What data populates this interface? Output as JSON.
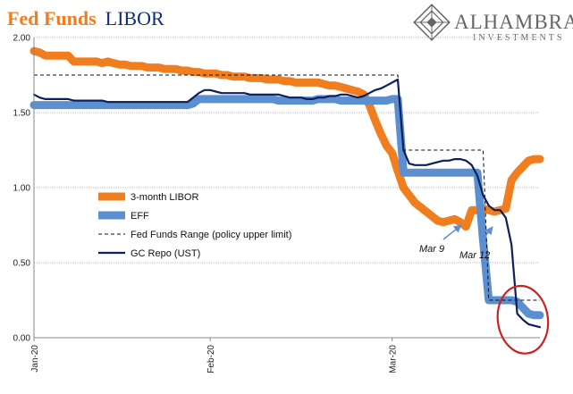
{
  "chart_data": {
    "type": "line",
    "title_part1": "Fed Funds",
    "title_part2": "LIBOR",
    "x": [
      0,
      1,
      2,
      3,
      4,
      5,
      6,
      7,
      8,
      9,
      10,
      11,
      12,
      13,
      14,
      15,
      16,
      17,
      18,
      19,
      20,
      21,
      22,
      23,
      24,
      25,
      26,
      27,
      28,
      29,
      30,
      31,
      32,
      33,
      34,
      35,
      36,
      37,
      38,
      39,
      40,
      41,
      42,
      43,
      44,
      45,
      46,
      47,
      48,
      49,
      50,
      51,
      52,
      53,
      54,
      55,
      56,
      57,
      58,
      59,
      60,
      61,
      62,
      63,
      64,
      65,
      66,
      67,
      68,
      69,
      70,
      71,
      72,
      73,
      74,
      75,
      76,
      77,
      78,
      79,
      80,
      81,
      82,
      83,
      84,
      85,
      86,
      87,
      88,
      89
    ],
    "series": [
      {
        "name": "3-month LIBOR",
        "color": "#f07d1e",
        "values": [
          1.91,
          1.9,
          1.88,
          1.88,
          1.88,
          1.88,
          1.88,
          1.84,
          1.84,
          1.84,
          1.84,
          1.84,
          1.83,
          1.84,
          1.83,
          1.82,
          1.82,
          1.81,
          1.81,
          1.81,
          1.8,
          1.8,
          1.8,
          1.79,
          1.79,
          1.79,
          1.78,
          1.78,
          1.77,
          1.77,
          1.76,
          1.76,
          1.76,
          1.75,
          1.75,
          1.74,
          1.74,
          1.74,
          1.73,
          1.73,
          1.73,
          1.72,
          1.72,
          1.72,
          1.71,
          1.71,
          1.7,
          1.7,
          1.7,
          1.7,
          1.7,
          1.69,
          1.68,
          1.68,
          1.67,
          1.66,
          1.65,
          1.64,
          1.62,
          1.55,
          1.45,
          1.36,
          1.28,
          1.23,
          1.11,
          1.0,
          0.95,
          0.9,
          0.87,
          0.84,
          0.81,
          0.78,
          0.77,
          0.78,
          0.79,
          0.77,
          0.74,
          0.85,
          0.85,
          0.86,
          0.85,
          0.84,
          0.85,
          0.86,
          1.05,
          1.1,
          1.14,
          1.18,
          1.19,
          1.19
        ]
      },
      {
        "name": "EFF",
        "color": "#5b8fd0",
        "values": [
          1.55,
          1.55,
          1.55,
          1.55,
          1.55,
          1.55,
          1.55,
          1.55,
          1.55,
          1.55,
          1.55,
          1.55,
          1.55,
          1.55,
          1.55,
          1.55,
          1.55,
          1.55,
          1.55,
          1.55,
          1.55,
          1.55,
          1.55,
          1.55,
          1.55,
          1.55,
          1.55,
          1.55,
          1.56,
          1.59,
          1.59,
          1.59,
          1.59,
          1.59,
          1.59,
          1.59,
          1.59,
          1.59,
          1.59,
          1.59,
          1.59,
          1.59,
          1.59,
          1.58,
          1.58,
          1.58,
          1.58,
          1.58,
          1.58,
          1.58,
          1.59,
          1.59,
          1.59,
          1.59,
          1.58,
          1.58,
          1.58,
          1.58,
          1.58,
          1.58,
          1.58,
          1.58,
          1.58,
          1.59,
          1.59,
          1.1,
          1.1,
          1.1,
          1.1,
          1.1,
          1.1,
          1.1,
          1.1,
          1.1,
          1.1,
          1.1,
          1.1,
          1.1,
          1.1,
          0.65,
          0.25,
          0.25,
          0.25,
          0.25,
          0.25,
          0.24,
          0.2,
          0.16,
          0.15,
          0.15
        ]
      },
      {
        "name": "Fed Funds Range (policy upper limit)",
        "color": "#111111",
        "dash": "4,3",
        "values": [
          1.75,
          1.75,
          1.75,
          1.75,
          1.75,
          1.75,
          1.75,
          1.75,
          1.75,
          1.75,
          1.75,
          1.75,
          1.75,
          1.75,
          1.75,
          1.75,
          1.75,
          1.75,
          1.75,
          1.75,
          1.75,
          1.75,
          1.75,
          1.75,
          1.75,
          1.75,
          1.75,
          1.75,
          1.75,
          1.75,
          1.75,
          1.75,
          1.75,
          1.75,
          1.75,
          1.75,
          1.75,
          1.75,
          1.75,
          1.75,
          1.75,
          1.75,
          1.75,
          1.75,
          1.75,
          1.75,
          1.75,
          1.75,
          1.75,
          1.75,
          1.75,
          1.75,
          1.75,
          1.75,
          1.75,
          1.75,
          1.75,
          1.75,
          1.75,
          1.75,
          1.75,
          1.75,
          1.75,
          1.75,
          1.75,
          1.25,
          1.25,
          1.25,
          1.25,
          1.25,
          1.25,
          1.25,
          1.25,
          1.25,
          1.25,
          1.25,
          1.25,
          1.25,
          1.25,
          1.25,
          0.25,
          0.25,
          0.25,
          0.25,
          0.25,
          0.25,
          0.25,
          0.25,
          0.25,
          0.25
        ]
      },
      {
        "name": "GC Repo (UST)",
        "color": "#0d1f5c",
        "values": [
          1.62,
          1.6,
          1.59,
          1.59,
          1.59,
          1.59,
          1.59,
          1.58,
          1.58,
          1.58,
          1.58,
          1.58,
          1.58,
          1.57,
          1.57,
          1.57,
          1.57,
          1.57,
          1.57,
          1.57,
          1.57,
          1.57,
          1.57,
          1.57,
          1.57,
          1.57,
          1.57,
          1.57,
          1.6,
          1.63,
          1.65,
          1.65,
          1.64,
          1.63,
          1.63,
          1.63,
          1.63,
          1.63,
          1.62,
          1.62,
          1.62,
          1.62,
          1.62,
          1.62,
          1.61,
          1.6,
          1.6,
          1.6,
          1.59,
          1.59,
          1.6,
          1.6,
          1.61,
          1.61,
          1.62,
          1.62,
          1.61,
          1.6,
          1.61,
          1.63,
          1.65,
          1.66,
          1.68,
          1.7,
          1.72,
          1.25,
          1.16,
          1.15,
          1.15,
          1.15,
          1.16,
          1.17,
          1.18,
          1.18,
          1.19,
          1.19,
          1.18,
          1.15,
          1.08,
          0.95,
          0.88,
          0.85,
          0.85,
          0.8,
          0.62,
          0.16,
          0.12,
          0.09,
          0.08,
          0.07
        ]
      }
    ],
    "legend_order": [
      0,
      1,
      2,
      3
    ],
    "y_ticks": [
      "2.00",
      "1.50",
      "1.00",
      "0.50",
      "0.00"
    ],
    "y_tick_values": [
      2.0,
      1.5,
      1.0,
      0.5,
      0.0
    ],
    "ylim": [
      0,
      2
    ],
    "x_tick_labels": [
      "Jan-20",
      "Feb-20",
      "Mar-20"
    ],
    "x_tick_positions": [
      0,
      31,
      63
    ],
    "xlim": [
      0,
      89
    ],
    "grid": "horizontal",
    "annotations": [
      {
        "label": "Mar 9",
        "x": 70,
        "y": 0.75
      },
      {
        "label": "Mar 12",
        "x": 75,
        "y": 0.74
      }
    ],
    "highlight": {
      "shape": "ellipse",
      "color": "#cc2222",
      "center_x": 86,
      "center_y": 0.12
    }
  },
  "logo": {
    "name": "ALHAMBRA",
    "sub": "INVESTMENTS",
    "color": "#666666"
  },
  "colors": {
    "title_part1": "#f07d1e",
    "title_part2": "#0d2c7a",
    "grid": "#bfbfbf"
  }
}
